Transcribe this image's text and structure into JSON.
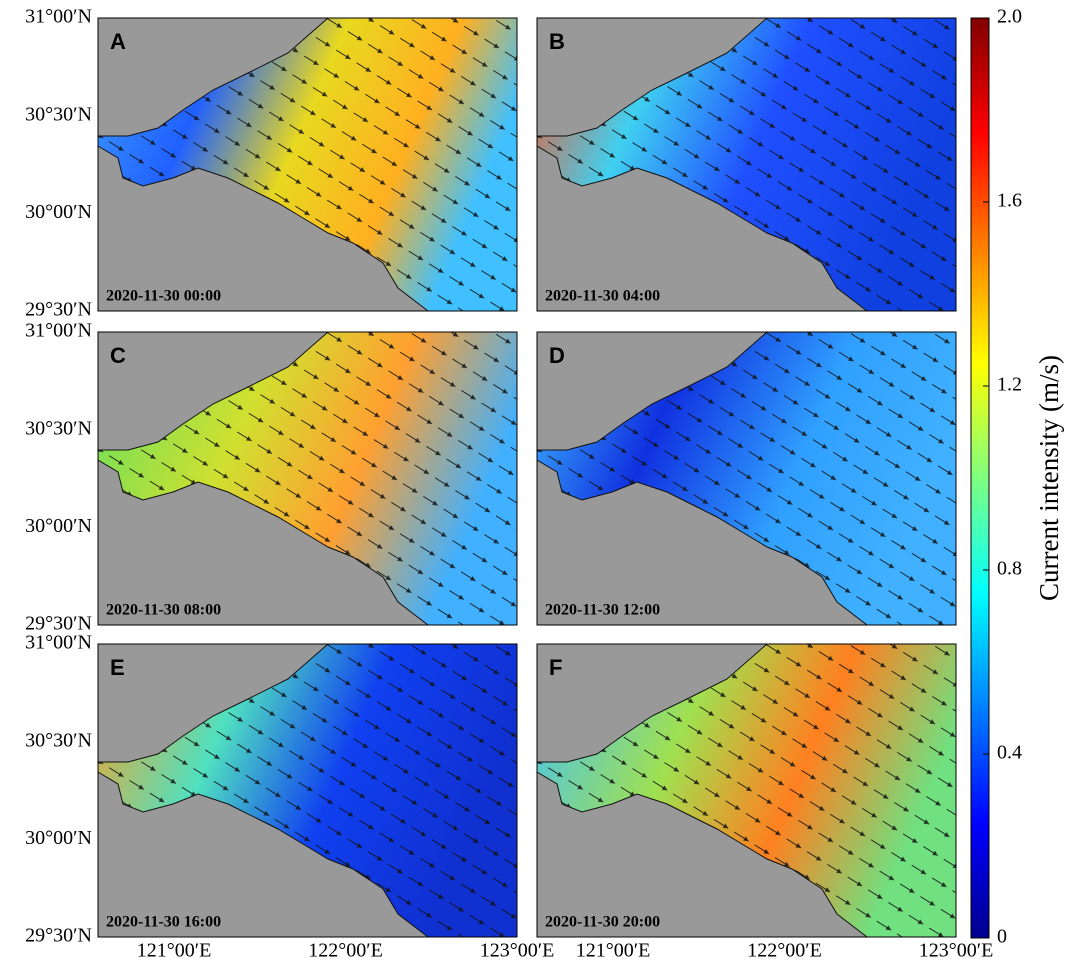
{
  "panels": [
    {
      "letter": "A",
      "time": "2020-11-30 00:00"
    },
    {
      "letter": "B",
      "time": "2020-11-30 04:00"
    },
    {
      "letter": "C",
      "time": "2020-11-30 08:00"
    },
    {
      "letter": "D",
      "time": "2020-11-30 12:00"
    },
    {
      "letter": "E",
      "time": "2020-11-30 16:00"
    },
    {
      "letter": "F",
      "time": "2020-11-30 20:00"
    }
  ],
  "lat_ticks": [
    "31°00′N",
    "30°30′N",
    "30°00′N",
    "29°30′N"
  ],
  "lon_ticks": [
    "121°00′E",
    "122°00′E",
    "123°00′E"
  ],
  "colorbar": {
    "label": "Current intensity (m/s)",
    "lim": [
      0,
      2
    ],
    "ticks": [
      0,
      0.4,
      0.8,
      1.2,
      1.6,
      {
        "value": 2,
        "label": "2.0"
      }
    ]
  }
}
